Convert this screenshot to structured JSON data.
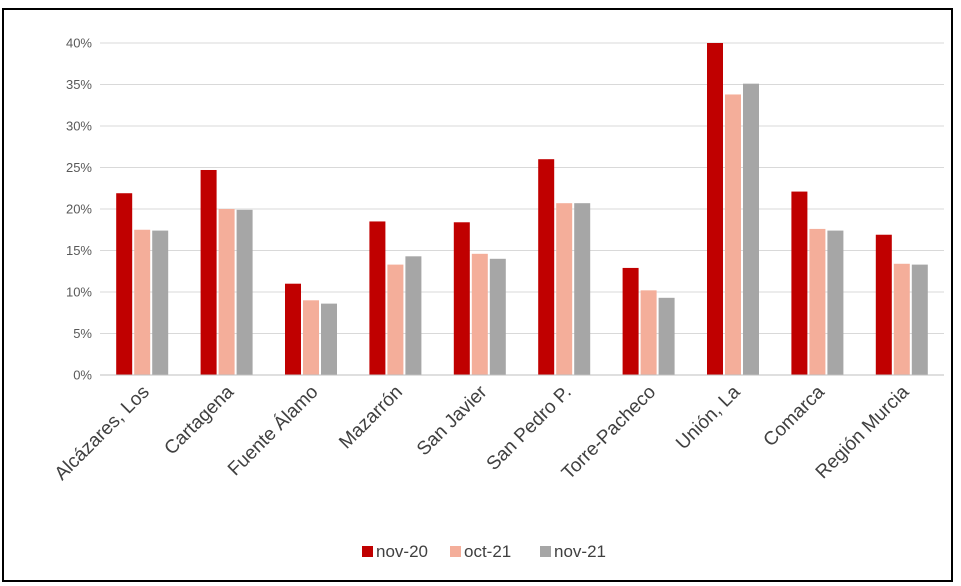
{
  "chart_data": {
    "type": "bar",
    "title": "",
    "xlabel": "",
    "ylabel": "",
    "categories": [
      "Alcázares, Los",
      "Cartagena",
      "Fuente Álamo",
      "Mazarrón",
      "San Javier",
      "San Pedro P.",
      "Torre-Pacheco",
      "Unión, La",
      "Comarca",
      "Región Murcia"
    ],
    "series": [
      {
        "name": "nov-20",
        "color": "#c00000",
        "values": [
          21.9,
          24.7,
          11.0,
          18.5,
          18.4,
          26.0,
          12.9,
          40.0,
          22.1,
          16.9
        ]
      },
      {
        "name": "oct-21",
        "color": "#f4ae9a",
        "values": [
          17.5,
          20.0,
          9.0,
          13.3,
          14.6,
          20.7,
          10.2,
          33.8,
          17.6,
          13.4
        ]
      },
      {
        "name": "nov-21",
        "color": "#a6a6a6",
        "values": [
          17.4,
          19.9,
          8.6,
          14.3,
          14.0,
          20.7,
          9.3,
          35.1,
          17.4,
          13.3
        ]
      }
    ],
    "ylim": [
      0,
      40
    ],
    "yticks": [
      "0%",
      "5%",
      "10%",
      "15%",
      "20%",
      "25%",
      "30%",
      "35%",
      "40%"
    ],
    "grid": true,
    "legend_position": "bottom"
  }
}
